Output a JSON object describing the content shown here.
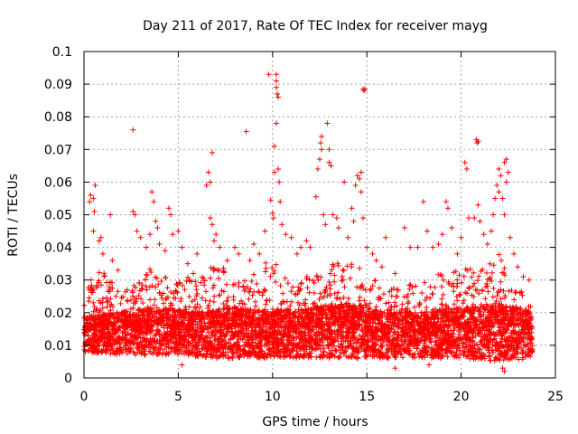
{
  "chart_data": {
    "type": "scatter",
    "title": "Day 211 of 2017, Rate Of TEC Index for receiver mayg",
    "xlabel": "GPS time / hours",
    "ylabel": "ROTI / TECUs",
    "xlim": [
      0,
      25
    ],
    "ylim": [
      0,
      0.1
    ],
    "x_ticks": [
      0,
      5,
      10,
      15,
      20,
      25
    ],
    "x_tick_labels": [
      "0",
      "5",
      "10",
      "15",
      "20",
      "25"
    ],
    "y_ticks": [
      0,
      0.01,
      0.02,
      0.03,
      0.04,
      0.05,
      0.06,
      0.07,
      0.08,
      0.09,
      0.1
    ],
    "y_tick_labels": [
      "0",
      "0.01",
      "0.02",
      "0.03",
      "0.04",
      "0.05",
      "0.06",
      "0.07",
      "0.08",
      "0.09",
      "0.1"
    ],
    "grid": true,
    "marker": "+",
    "color": "#ff0000",
    "data_x_range": [
      0,
      23.8
    ],
    "band": {
      "low": [
        [
          0,
          0.008
        ],
        [
          2,
          0.007
        ],
        [
          5,
          0.007
        ],
        [
          7,
          0.006
        ],
        [
          10,
          0.006
        ],
        [
          12,
          0.006
        ],
        [
          15,
          0.006
        ],
        [
          18,
          0.006
        ],
        [
          20,
          0.006
        ],
        [
          22,
          0.005
        ],
        [
          23.8,
          0.006
        ]
      ],
      "mid": [
        [
          0,
          0.014
        ],
        [
          2,
          0.015
        ],
        [
          4,
          0.016
        ],
        [
          6,
          0.015
        ],
        [
          8,
          0.016
        ],
        [
          10,
          0.015
        ],
        [
          12,
          0.016
        ],
        [
          14,
          0.017
        ],
        [
          16,
          0.015
        ],
        [
          18,
          0.015
        ],
        [
          20,
          0.016
        ],
        [
          22,
          0.017
        ],
        [
          23.8,
          0.015
        ]
      ],
      "top": [
        [
          0,
          0.03
        ],
        [
          1,
          0.033
        ],
        [
          2,
          0.026
        ],
        [
          3,
          0.03
        ],
        [
          3.7,
          0.035
        ],
        [
          5,
          0.03
        ],
        [
          6.5,
          0.033
        ],
        [
          7,
          0.037
        ],
        [
          8,
          0.029
        ],
        [
          9,
          0.034
        ],
        [
          10,
          0.036
        ],
        [
          11,
          0.03
        ],
        [
          12,
          0.032
        ],
        [
          13,
          0.035
        ],
        [
          14,
          0.038
        ],
        [
          15,
          0.032
        ],
        [
          16,
          0.029
        ],
        [
          17,
          0.028
        ],
        [
          18,
          0.031
        ],
        [
          19,
          0.032
        ],
        [
          20,
          0.034
        ],
        [
          21,
          0.033
        ],
        [
          22,
          0.038
        ],
        [
          23,
          0.028
        ],
        [
          23.8,
          0.026
        ]
      ]
    },
    "outliers": [
      [
        0.3,
        0.054
      ],
      [
        0.35,
        0.056
      ],
      [
        0.5,
        0.055
      ],
      [
        0.55,
        0.051
      ],
      [
        0.6,
        0.059
      ],
      [
        0.5,
        0.045
      ],
      [
        0.8,
        0.042
      ],
      [
        0.9,
        0.043
      ],
      [
        1.0,
        0.038
      ],
      [
        1.4,
        0.05
      ],
      [
        1.5,
        0.036
      ],
      [
        1.8,
        0.033
      ],
      [
        2.6,
        0.076
      ],
      [
        2.6,
        0.051
      ],
      [
        2.7,
        0.05
      ],
      [
        2.8,
        0.045
      ],
      [
        3.0,
        0.043
      ],
      [
        3.3,
        0.04
      ],
      [
        3.5,
        0.044
      ],
      [
        3.6,
        0.057
      ],
      [
        3.7,
        0.054
      ],
      [
        3.8,
        0.048
      ],
      [
        3.9,
        0.046
      ],
      [
        4.0,
        0.041
      ],
      [
        4.3,
        0.039
      ],
      [
        4.5,
        0.052
      ],
      [
        4.6,
        0.05
      ],
      [
        4.7,
        0.044
      ],
      [
        5.0,
        0.045
      ],
      [
        5.2,
        0.04
      ],
      [
        5.5,
        0.035
      ],
      [
        5.8,
        0.032
      ],
      [
        6.0,
        0.038
      ],
      [
        6.5,
        0.059
      ],
      [
        6.6,
        0.063
      ],
      [
        6.7,
        0.06
      ],
      [
        6.8,
        0.069
      ],
      [
        6.7,
        0.049
      ],
      [
        6.8,
        0.047
      ],
      [
        6.9,
        0.042
      ],
      [
        7.0,
        0.044
      ],
      [
        7.2,
        0.04
      ],
      [
        7.6,
        0.036
      ],
      [
        8.0,
        0.04
      ],
      [
        8.2,
        0.038
      ],
      [
        8.6,
        0.0755
      ],
      [
        8.8,
        0.036
      ],
      [
        9.0,
        0.041
      ],
      [
        9.3,
        0.038
      ],
      [
        9.6,
        0.045
      ],
      [
        9.8,
        0.093
      ],
      [
        9.9,
        0.0545
      ],
      [
        10.0,
        0.0505
      ],
      [
        10.05,
        0.049
      ],
      [
        10.1,
        0.063
      ],
      [
        10.1,
        0.071
      ],
      [
        10.2,
        0.093
      ],
      [
        10.2,
        0.091
      ],
      [
        10.2,
        0.089
      ],
      [
        10.25,
        0.087
      ],
      [
        10.3,
        0.086
      ],
      [
        10.2,
        0.078
      ],
      [
        10.3,
        0.064
      ],
      [
        10.35,
        0.06
      ],
      [
        10.4,
        0.054
      ],
      [
        10.5,
        0.047
      ],
      [
        10.7,
        0.044
      ],
      [
        11.0,
        0.043
      ],
      [
        11.3,
        0.038
      ],
      [
        11.5,
        0.04
      ],
      [
        11.8,
        0.042
      ],
      [
        12.0,
        0.04
      ],
      [
        12.3,
        0.0555
      ],
      [
        12.4,
        0.064
      ],
      [
        12.5,
        0.067
      ],
      [
        12.55,
        0.072
      ],
      [
        12.6,
        0.074
      ],
      [
        12.6,
        0.07
      ],
      [
        12.7,
        0.05
      ],
      [
        12.8,
        0.047
      ],
      [
        12.9,
        0.078
      ],
      [
        13.0,
        0.07
      ],
      [
        13.0,
        0.066
      ],
      [
        13.1,
        0.065
      ],
      [
        13.2,
        0.05
      ],
      [
        13.4,
        0.049
      ],
      [
        13.5,
        0.046
      ],
      [
        13.8,
        0.06
      ],
      [
        14.0,
        0.043
      ],
      [
        14.2,
        0.052
      ],
      [
        14.3,
        0.048
      ],
      [
        14.4,
        0.059
      ],
      [
        14.5,
        0.062
      ],
      [
        14.6,
        0.061
      ],
      [
        14.7,
        0.063
      ],
      [
        14.8,
        0.0885
      ],
      [
        14.85,
        0.088
      ],
      [
        14.9,
        0.0885
      ],
      [
        14.7,
        0.057
      ],
      [
        14.8,
        0.049
      ],
      [
        15.0,
        0.04
      ],
      [
        15.3,
        0.038
      ],
      [
        15.5,
        0.036
      ],
      [
        15.8,
        0.034
      ],
      [
        16.0,
        0.043
      ],
      [
        16.5,
        0.032
      ],
      [
        17.0,
        0.046
      ],
      [
        17.3,
        0.04
      ],
      [
        17.7,
        0.04
      ],
      [
        18.0,
        0.054
      ],
      [
        18.2,
        0.045
      ],
      [
        18.5,
        0.04
      ],
      [
        18.8,
        0.041
      ],
      [
        19.0,
        0.044
      ],
      [
        19.2,
        0.054
      ],
      [
        19.3,
        0.052
      ],
      [
        19.5,
        0.046
      ],
      [
        19.8,
        0.038
      ],
      [
        20.0,
        0.043
      ],
      [
        20.2,
        0.066
      ],
      [
        20.3,
        0.064
      ],
      [
        20.4,
        0.049
      ],
      [
        20.7,
        0.049
      ],
      [
        20.8,
        0.073
      ],
      [
        20.85,
        0.072
      ],
      [
        20.9,
        0.0725
      ],
      [
        20.9,
        0.053
      ],
      [
        21.0,
        0.048
      ],
      [
        21.2,
        0.044
      ],
      [
        21.4,
        0.041
      ],
      [
        21.6,
        0.045
      ],
      [
        21.7,
        0.05
      ],
      [
        21.8,
        0.055
      ],
      [
        21.9,
        0.059
      ],
      [
        22.0,
        0.064
      ],
      [
        22.0,
        0.057
      ],
      [
        22.1,
        0.062
      ],
      [
        22.2,
        0.055
      ],
      [
        22.3,
        0.05
      ],
      [
        22.3,
        0.066
      ],
      [
        22.4,
        0.067
      ],
      [
        22.4,
        0.06
      ],
      [
        22.5,
        0.063
      ],
      [
        22.6,
        0.043
      ],
      [
        22.8,
        0.038
      ],
      [
        23.0,
        0.034
      ],
      [
        23.3,
        0.031
      ],
      [
        23.6,
        0.03
      ],
      [
        22.2,
        0.003
      ],
      [
        22.3,
        0.002
      ],
      [
        16.5,
        0.003
      ],
      [
        5.2,
        0.004
      ],
      [
        18.3,
        0.004
      ]
    ]
  }
}
